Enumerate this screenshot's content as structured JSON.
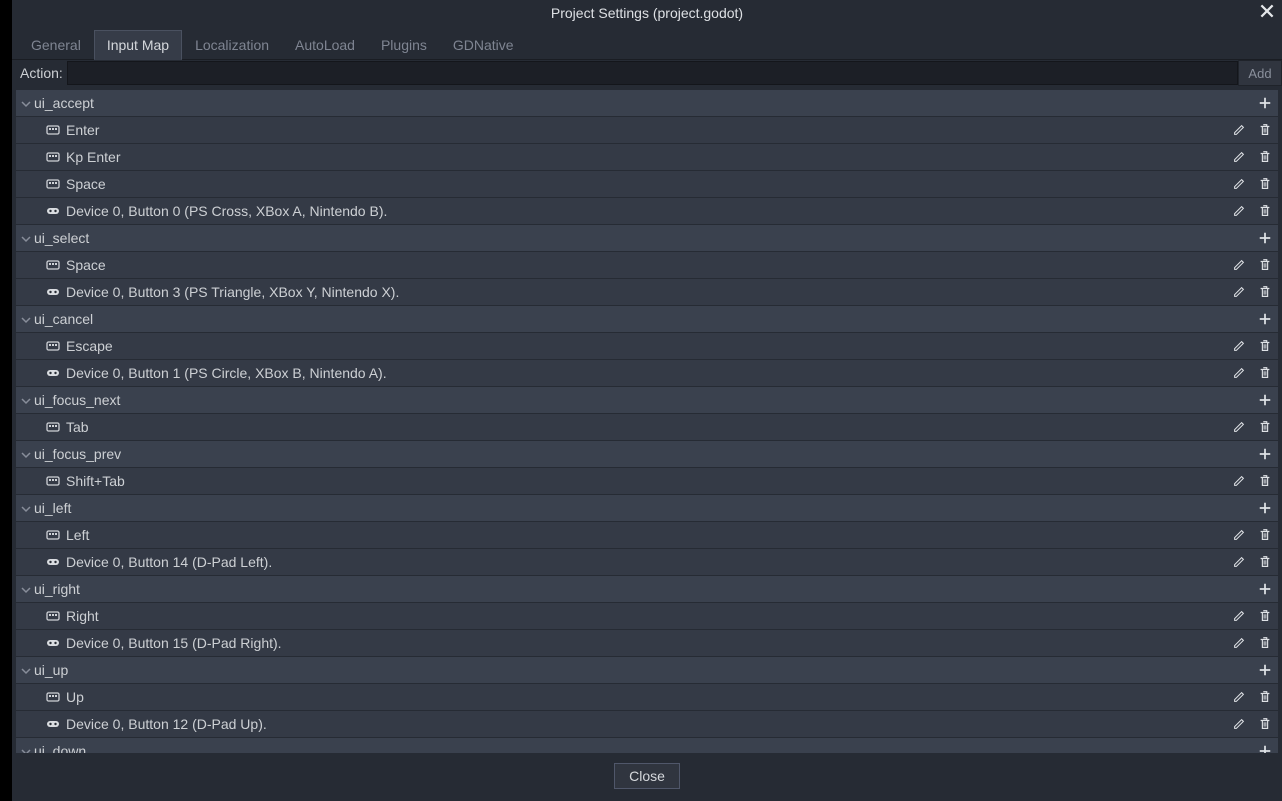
{
  "window": {
    "title": "Project Settings (project.godot)",
    "close_button_label": "Close",
    "add_button_label": "Add",
    "action_label": "Action:"
  },
  "tabs": [
    {
      "label": "General",
      "active": false
    },
    {
      "label": "Input Map",
      "active": true
    },
    {
      "label": "Localization",
      "active": false
    },
    {
      "label": "AutoLoad",
      "active": false
    },
    {
      "label": "Plugins",
      "active": false
    },
    {
      "label": "GDNative",
      "active": false
    }
  ],
  "action_input_value": "",
  "colors": {
    "dialog_bg": "#262b34",
    "header_bg": "#3a414e",
    "row_bg": "#343a46",
    "text": "#cdd0d4",
    "muted": "#7f8592",
    "accent_border": "#50576a"
  },
  "actions": [
    {
      "name": "ui_accept",
      "bindings": [
        {
          "type": "key",
          "label": "Enter"
        },
        {
          "type": "key",
          "label": "Kp Enter"
        },
        {
          "type": "key",
          "label": "Space"
        },
        {
          "type": "joy",
          "label": "Device 0, Button 0 (PS Cross, XBox A, Nintendo B)."
        }
      ]
    },
    {
      "name": "ui_select",
      "bindings": [
        {
          "type": "key",
          "label": "Space"
        },
        {
          "type": "joy",
          "label": "Device 0, Button 3 (PS Triangle, XBox Y, Nintendo X)."
        }
      ]
    },
    {
      "name": "ui_cancel",
      "bindings": [
        {
          "type": "key",
          "label": "Escape"
        },
        {
          "type": "joy",
          "label": "Device 0, Button 1 (PS Circle, XBox B, Nintendo A)."
        }
      ]
    },
    {
      "name": "ui_focus_next",
      "bindings": [
        {
          "type": "key",
          "label": "Tab"
        }
      ]
    },
    {
      "name": "ui_focus_prev",
      "bindings": [
        {
          "type": "key",
          "label": "Shift+Tab"
        }
      ]
    },
    {
      "name": "ui_left",
      "bindings": [
        {
          "type": "key",
          "label": "Left"
        },
        {
          "type": "joy",
          "label": "Device 0, Button 14 (D-Pad Left)."
        }
      ]
    },
    {
      "name": "ui_right",
      "bindings": [
        {
          "type": "key",
          "label": "Right"
        },
        {
          "type": "joy",
          "label": "Device 0, Button 15 (D-Pad Right)."
        }
      ]
    },
    {
      "name": "ui_up",
      "bindings": [
        {
          "type": "key",
          "label": "Up"
        },
        {
          "type": "joy",
          "label": "Device 0, Button 12 (D-Pad Up)."
        }
      ]
    },
    {
      "name": "ui_down",
      "bindings": []
    }
  ]
}
